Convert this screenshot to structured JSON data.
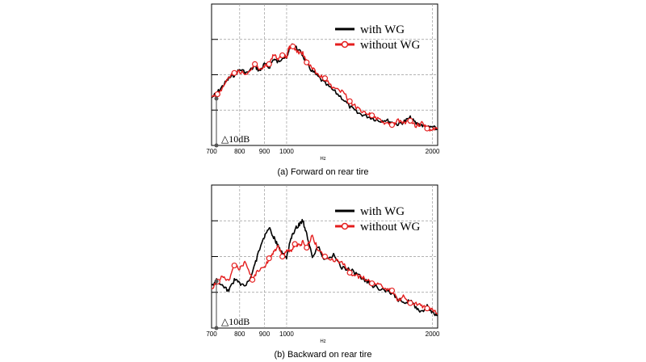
{
  "chart_data": [
    {
      "type": "line",
      "caption": "(a) Forward on rear tire",
      "xlabel": "Hz",
      "ylabel": "",
      "x_scale": "log",
      "xlim": [
        700,
        2050
      ],
      "ylim": [
        0,
        4
      ],
      "x_ticks": [
        700,
        800,
        900,
        1000,
        2000
      ],
      "x_tick_labels": [
        "700",
        "800",
        "900",
        "1000",
        "2000"
      ],
      "scale_annotation": "△10dB",
      "legend_position": "top-right",
      "series": [
        {
          "name": "with WG",
          "color": "#000000",
          "marker": "none",
          "x": [
            700,
            720,
            740,
            760,
            780,
            800,
            830,
            860,
            880,
            900,
            920,
            940,
            960,
            980,
            1000,
            1010,
            1030,
            1050,
            1080,
            1100,
            1130,
            1160,
            1200,
            1250,
            1300,
            1350,
            1400,
            1450,
            1500,
            1550,
            1600,
            1650,
            1700,
            1750,
            1800,
            1850,
            1900,
            1950,
            2000,
            2050
          ],
          "y": [
            1.35,
            1.5,
            1.7,
            1.9,
            2.0,
            2.15,
            2.05,
            2.25,
            2.1,
            2.3,
            2.2,
            2.45,
            2.35,
            2.5,
            2.45,
            2.7,
            2.85,
            2.75,
            2.55,
            2.3,
            2.1,
            1.95,
            1.75,
            1.55,
            1.35,
            1.1,
            0.92,
            0.85,
            0.78,
            0.7,
            0.72,
            0.65,
            0.6,
            0.68,
            0.78,
            0.62,
            0.58,
            0.5,
            0.52,
            0.45
          ]
        },
        {
          "name": "without WG",
          "color": "#e41e1e",
          "marker": "circle",
          "x": [
            700,
            720,
            740,
            760,
            780,
            800,
            830,
            860,
            880,
            900,
            920,
            940,
            960,
            980,
            1000,
            1010,
            1030,
            1050,
            1080,
            1100,
            1130,
            1160,
            1200,
            1250,
            1300,
            1350,
            1400,
            1450,
            1500,
            1550,
            1600,
            1650,
            1700,
            1750,
            1800,
            1850,
            1900,
            1950,
            2000,
            2050
          ],
          "y": [
            1.4,
            1.45,
            1.65,
            1.95,
            2.05,
            2.1,
            2.0,
            2.3,
            2.15,
            2.25,
            2.3,
            2.6,
            2.4,
            2.55,
            2.5,
            2.75,
            2.8,
            2.65,
            2.6,
            2.35,
            2.2,
            2.0,
            1.9,
            1.6,
            1.55,
            1.25,
            1.05,
            0.95,
            0.85,
            0.72,
            0.62,
            0.58,
            0.7,
            0.62,
            0.7,
            0.55,
            0.62,
            0.48,
            0.45,
            0.48
          ]
        }
      ]
    },
    {
      "type": "line",
      "caption": "(b) Backward on rear tire",
      "xlabel": "Hz",
      "ylabel": "",
      "x_scale": "log",
      "xlim": [
        700,
        2050
      ],
      "ylim": [
        0,
        4
      ],
      "x_ticks": [
        700,
        800,
        900,
        1000,
        2000
      ],
      "x_tick_labels": [
        "700",
        "800",
        "900",
        "1000",
        "2000"
      ],
      "scale_annotation": "△10dB",
      "legend_position": "top-right",
      "series": [
        {
          "name": "with WG",
          "color": "#000000",
          "marker": "none",
          "x": [
            700,
            720,
            740,
            760,
            780,
            800,
            820,
            850,
            870,
            900,
            920,
            940,
            960,
            980,
            1000,
            1020,
            1040,
            1060,
            1080,
            1100,
            1130,
            1160,
            1200,
            1250,
            1300,
            1350,
            1400,
            1450,
            1500,
            1550,
            1600,
            1650,
            1700,
            1750,
            1800,
            1850,
            1900,
            1950,
            2000,
            2050
          ],
          "y": [
            1.2,
            1.35,
            1.15,
            1.05,
            1.35,
            1.25,
            1.15,
            1.55,
            2.0,
            2.55,
            2.8,
            2.55,
            2.3,
            2.1,
            1.95,
            2.5,
            2.75,
            2.9,
            3.0,
            2.65,
            2.0,
            2.3,
            1.9,
            2.05,
            1.7,
            1.65,
            1.5,
            1.35,
            1.2,
            1.1,
            1.05,
            0.95,
            0.8,
            0.72,
            0.78,
            0.55,
            0.48,
            0.6,
            0.42,
            0.35
          ]
        },
        {
          "name": "without WG",
          "color": "#e41e1e",
          "marker": "circle",
          "x": [
            700,
            720,
            740,
            760,
            780,
            800,
            820,
            850,
            870,
            900,
            920,
            940,
            960,
            980,
            1000,
            1020,
            1040,
            1060,
            1080,
            1100,
            1130,
            1160,
            1200,
            1250,
            1300,
            1350,
            1400,
            1450,
            1500,
            1550,
            1600,
            1650,
            1700,
            1750,
            1800,
            1850,
            1900,
            1950,
            2000,
            2050
          ],
          "y": [
            1.1,
            1.3,
            1.45,
            1.3,
            1.75,
            1.65,
            1.85,
            1.35,
            1.6,
            1.7,
            1.95,
            2.1,
            2.3,
            2.0,
            2.2,
            2.15,
            2.35,
            2.3,
            2.4,
            2.25,
            2.6,
            2.2,
            2.0,
            1.9,
            1.85,
            1.55,
            1.45,
            1.4,
            1.25,
            1.2,
            1.1,
            1.05,
            0.75,
            0.9,
            0.7,
            0.7,
            0.6,
            0.55,
            0.5,
            0.4
          ]
        }
      ]
    }
  ]
}
